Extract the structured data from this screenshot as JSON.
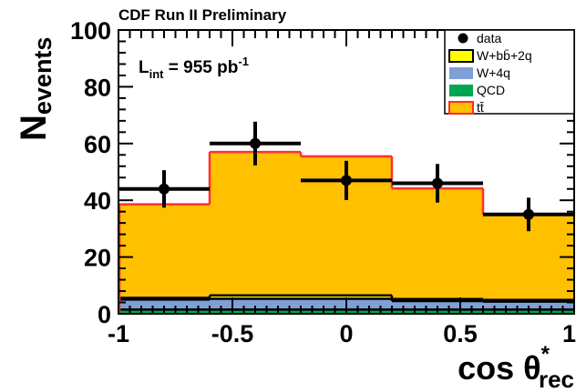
{
  "chart_data": {
    "type": "bar",
    "title": "CDF Run II Preliminary",
    "annotation": {
      "label": "L",
      "label_sub": "int",
      "value": " = 955 pb",
      "value_sup": "-1"
    },
    "ylabel": {
      "main": "N",
      "sub": "events"
    },
    "xlabel": {
      "main": "cos θ",
      "sup": "*",
      "sub": "rec"
    },
    "xlim": [
      -1,
      1
    ],
    "ylim": [
      0,
      100
    ],
    "x_ticks": [
      "-1",
      "-0.5",
      "0",
      "0.5",
      "1"
    ],
    "y_ticks": [
      "0",
      "20",
      "40",
      "60",
      "80",
      "100"
    ],
    "bin_edges": [
      -1,
      -0.6,
      -0.2,
      0.2,
      0.6,
      1
    ],
    "stack": [
      {
        "name": "QCD",
        "color": "#00a651",
        "values": [
          1.5,
          1.5,
          1.5,
          1.5,
          1.5
        ]
      },
      {
        "name": "W+4q",
        "color": "#7f9fd6",
        "values": [
          3.5,
          3.8,
          3.8,
          3.0,
          2.8
        ]
      },
      {
        "name": "W+bb̄+2q",
        "color": "#ffff00",
        "values": [
          0.6,
          1.2,
          1.2,
          0.7,
          0.6
        ]
      },
      {
        "name": "tt̄",
        "color": "#ffc000",
        "values": [
          33,
          50.5,
          49,
          39,
          30
        ]
      }
    ],
    "data_points": [
      {
        "x": -0.8,
        "y": 44,
        "err": 6.6
      },
      {
        "x": -0.4,
        "y": 60,
        "err": 7.7
      },
      {
        "x": 0.0,
        "y": 47,
        "err": 6.9
      },
      {
        "x": 0.4,
        "y": 46,
        "err": 6.8
      },
      {
        "x": 0.8,
        "y": 35,
        "err": 5.9
      }
    ],
    "legend": {
      "placement": "top-right",
      "entries": [
        {
          "label": "data",
          "marker": "point",
          "color": "#000000"
        },
        {
          "label": "W+bb̄+2q",
          "marker": "box",
          "color": "#ffff00",
          "border": "#000000"
        },
        {
          "label": "W+4q",
          "marker": "box",
          "color": "#7f9fd6"
        },
        {
          "label": "QCD",
          "marker": "box",
          "color": "#00a651"
        },
        {
          "label": "tt̄",
          "marker": "box",
          "color": "#ffc000",
          "border": "#ff2a2a"
        }
      ]
    },
    "ttbar_outline_color": "#ff3030"
  }
}
